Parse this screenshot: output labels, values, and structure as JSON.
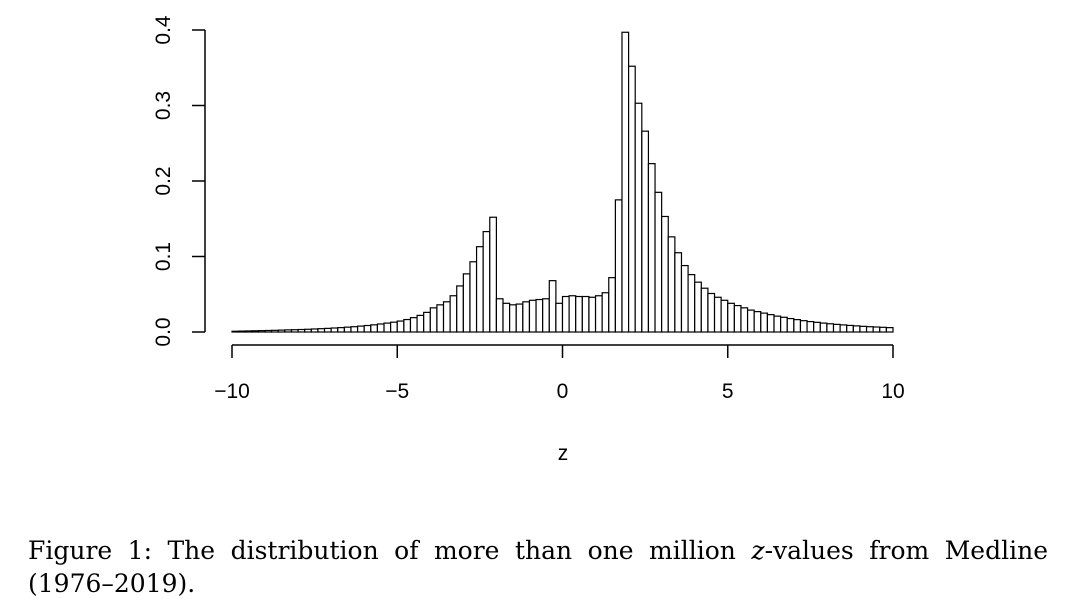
{
  "chart_data": {
    "type": "bar",
    "title": "",
    "xlabel": "z",
    "ylabel": "",
    "xlim": [
      -10,
      10
    ],
    "ylim": [
      0,
      0.4
    ],
    "xticks": [
      -10,
      -5,
      0,
      5,
      10
    ],
    "xtick_labels": [
      "−10",
      "−5",
      "0",
      "5",
      "10"
    ],
    "yticks": [
      0,
      0.1,
      0.2,
      0.3,
      0.4
    ],
    "ytick_labels": [
      "0.0",
      "0.1",
      "0.2",
      "0.3",
      "0.4"
    ],
    "grid": false,
    "bin_width": 0.2,
    "x": [
      -9.9,
      -9.7,
      -9.5,
      -9.3,
      -9.1,
      -8.9,
      -8.7,
      -8.5,
      -8.3,
      -8.1,
      -7.9,
      -7.7,
      -7.5,
      -7.3,
      -7.1,
      -6.9,
      -6.7,
      -6.5,
      -6.3,
      -6.1,
      -5.9,
      -5.7,
      -5.5,
      -5.3,
      -5.1,
      -4.9,
      -4.7,
      -4.5,
      -4.3,
      -4.1,
      -3.9,
      -3.7,
      -3.5,
      -3.3,
      -3.1,
      -2.9,
      -2.7,
      -2.5,
      -2.3,
      -2.1,
      -1.9,
      -1.7,
      -1.5,
      -1.3,
      -1.1,
      -0.9,
      -0.7,
      -0.5,
      -0.3,
      -0.1,
      0.1,
      0.3,
      0.5,
      0.7,
      0.9,
      1.1,
      1.3,
      1.5,
      1.7,
      1.9,
      2.1,
      2.3,
      2.5,
      2.7,
      2.9,
      3.1,
      3.3,
      3.5,
      3.7,
      3.9,
      4.1,
      4.3,
      4.5,
      4.7,
      4.9,
      5.1,
      5.3,
      5.5,
      5.7,
      5.9,
      6.1,
      6.3,
      6.5,
      6.7,
      6.9,
      7.1,
      7.3,
      7.5,
      7.7,
      7.9,
      8.1,
      8.3,
      8.5,
      8.7,
      8.9,
      9.1,
      9.3,
      9.5,
      9.7,
      9.9
    ],
    "values": [
      0.001,
      0.0012,
      0.0014,
      0.0016,
      0.0018,
      0.002,
      0.0022,
      0.0025,
      0.0028,
      0.003,
      0.0033,
      0.0036,
      0.004,
      0.0044,
      0.0048,
      0.0053,
      0.0058,
      0.0064,
      0.007,
      0.0078,
      0.0086,
      0.0095,
      0.0106,
      0.0118,
      0.013,
      0.0145,
      0.0165,
      0.019,
      0.022,
      0.026,
      0.032,
      0.036,
      0.04,
      0.048,
      0.061,
      0.077,
      0.093,
      0.113,
      0.133,
      0.152,
      0.044,
      0.038,
      0.036,
      0.037,
      0.04,
      0.042,
      0.043,
      0.044,
      0.068,
      0.038,
      0.047,
      0.048,
      0.047,
      0.047,
      0.046,
      0.048,
      0.052,
      0.072,
      0.175,
      0.397,
      0.352,
      0.303,
      0.266,
      0.223,
      0.185,
      0.153,
      0.126,
      0.105,
      0.088,
      0.076,
      0.066,
      0.058,
      0.051,
      0.046,
      0.042,
      0.038,
      0.035,
      0.032,
      0.029,
      0.027,
      0.025,
      0.023,
      0.021,
      0.0195,
      0.0178,
      0.0164,
      0.015,
      0.0138,
      0.0128,
      0.0118,
      0.0109,
      0.0101,
      0.0094,
      0.0087,
      0.0081,
      0.0075,
      0.007,
      0.0066,
      0.0062,
      0.0058
    ]
  },
  "caption": {
    "prefix": "Figure 1: The distribution of more than one million ",
    "variable": "z",
    "suffix": "-values from Medline (1976–2019)."
  }
}
